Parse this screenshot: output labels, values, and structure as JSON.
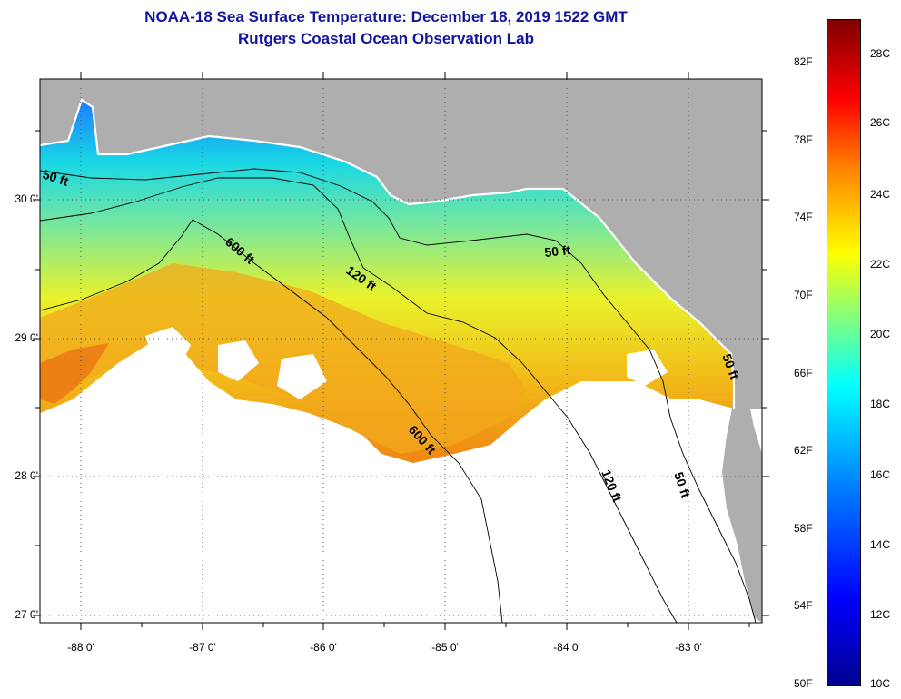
{
  "title": {
    "line1": "NOAA-18 Sea Surface Temperature:  December 18, 2019 1522 GMT",
    "line2": "Rutgers Coastal Ocean Observation Lab"
  },
  "axes": {
    "lat_ticks": [
      {
        "value": 30,
        "label": "30 0'"
      },
      {
        "value": 29,
        "label": "29 0'"
      },
      {
        "value": 28,
        "label": "28 0'"
      },
      {
        "value": 27,
        "label": "27 0'"
      }
    ],
    "lon_ticks": [
      {
        "value": -88,
        "label": "-88 0'"
      },
      {
        "value": -87,
        "label": "-87 0'"
      },
      {
        "value": -86,
        "label": "-86 0'"
      },
      {
        "value": -85,
        "label": "-85 0'"
      },
      {
        "value": -84,
        "label": "-84 0'"
      },
      {
        "value": -83,
        "label": "-83 0'"
      }
    ],
    "lat_range": [
      26.98,
      30.9
    ],
    "lon_range": [
      -88.33,
      -82.42
    ]
  },
  "contour_labels": [
    "50 ft",
    "600 ft",
    "120 ft",
    "50 ft",
    "50 ft",
    "600 ft",
    "120 ft",
    "50 ft"
  ],
  "colorbar": {
    "fahrenheit": [
      "82F",
      "78F",
      "74F",
      "70F",
      "66F",
      "62F",
      "58F",
      "54F",
      "50F"
    ],
    "celsius": [
      "28C",
      "26C",
      "24C",
      "22C",
      "20C",
      "18C",
      "16C",
      "14C",
      "12C",
      "10C"
    ],
    "colors": [
      "#00008f",
      "#0000ff",
      "#0080ff",
      "#00ffff",
      "#80ff80",
      "#ffff00",
      "#ff8000",
      "#ff0000",
      "#800000"
    ]
  },
  "colors": {
    "land": "#aeaeae",
    "no_data": "#ffffff",
    "title": "#1414a0"
  }
}
